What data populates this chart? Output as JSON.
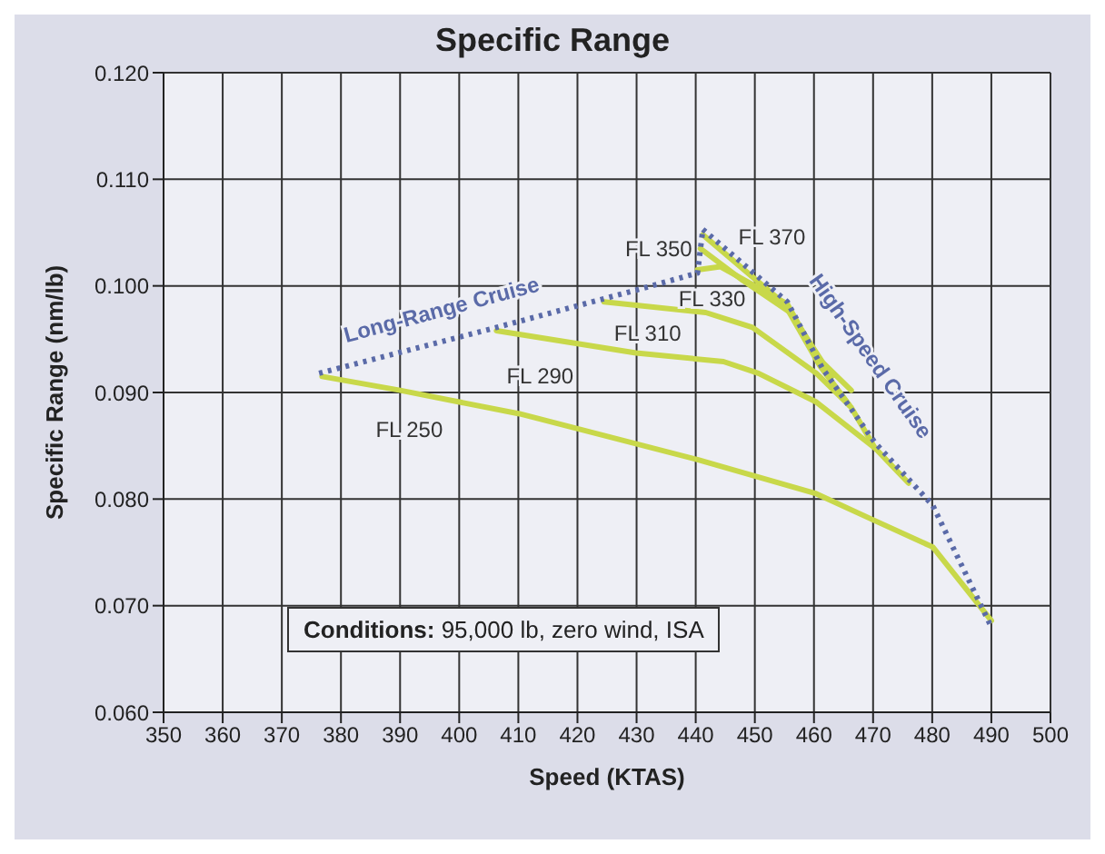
{
  "chart_data": {
    "type": "line",
    "title": "Specific Range",
    "xlabel": "Speed (KTAS)",
    "ylabel": "Specific Range (nm/lb)",
    "xlim": [
      350,
      500
    ],
    "xticks": [
      350,
      360,
      370,
      380,
      390,
      400,
      410,
      420,
      430,
      440,
      450,
      460,
      470,
      480,
      490,
      500
    ],
    "ylim": [
      0.06,
      0.12
    ],
    "yticks": [
      {
        "value": 0.06,
        "label": "0.060"
      },
      {
        "value": 0.07,
        "label": "0.070"
      },
      {
        "value": 0.08,
        "label": "0.080"
      },
      {
        "value": 0.09,
        "label": "0.090"
      },
      {
        "value": 0.1,
        "label": "0.100"
      },
      {
        "value": 0.11,
        "label": "0.110"
      },
      {
        "value": 0.12,
        "label": "0.120"
      }
    ],
    "grid": true,
    "marker": "none",
    "series": [
      {
        "name": "FL 250",
        "color": "#c8d84a",
        "line_style": "solid",
        "x": [
          376.8,
          390,
          410.2,
          440.3,
          460.4,
          469.8,
          480.1,
          490
        ],
        "values": [
          0.0915,
          0.0902,
          0.088,
          0.0837,
          0.0805,
          0.0781,
          0.0755,
          0.0686
        ]
      },
      {
        "name": "FL 290",
        "color": "#c8d84a",
        "line_style": "solid",
        "x": [
          406.3,
          429.9,
          444.7,
          450.6,
          460.4,
          470.3,
          476
        ],
        "values": [
          0.0958,
          0.0937,
          0.0929,
          0.0918,
          0.0891,
          0.0848,
          0.0815
        ]
      },
      {
        "name": "FL 310",
        "color": "#c8d84a",
        "line_style": "solid",
        "x": [
          424.5,
          441.7,
          449.6,
          460.4,
          466.3,
          470.3
        ],
        "values": [
          0.0985,
          0.0975,
          0.0961,
          0.0918,
          0.0886,
          0.0848
        ]
      },
      {
        "name": "FL 330",
        "color": "#c8d84a",
        "line_style": "solid",
        "x": [
          440.3,
          444.2,
          455.5,
          460.4,
          466.3
        ],
        "values": [
          0.1015,
          0.1018,
          0.0983,
          0.0934,
          0.0902
        ]
      },
      {
        "name": "FL 350",
        "color": "#c8d84a",
        "line_style": "solid",
        "x": [
          440.8,
          448,
          456,
          463
        ],
        "values": [
          0.1035,
          0.1005,
          0.0975,
          0.0915
        ]
      },
      {
        "name": "FL 370",
        "color": "#c8d84a",
        "line_style": "solid",
        "x": [
          441.2,
          455,
          461,
          466
        ],
        "values": [
          0.1048,
          0.0983,
          0.0925,
          0.0888
        ]
      },
      {
        "name": "Long-Range Cruise",
        "color": "#5a6aa8",
        "line_style": "dotted",
        "x": [
          376.3,
          406.3,
          429.9,
          440.3,
          441.2
        ],
        "values": [
          0.0918,
          0.0961,
          0.0996,
          0.1012,
          0.1053
        ]
      },
      {
        "name": "High-Speed Cruise",
        "color": "#5a6aa8",
        "line_style": "dotted",
        "x": [
          441.2,
          455.5,
          461.4,
          470.3,
          480.1,
          490
        ],
        "values": [
          0.1053,
          0.0985,
          0.0923,
          0.0853,
          0.0794,
          0.068
        ]
      }
    ],
    "annotations": [
      "Conditions: 95,000 lb, zero wind, ISA"
    ]
  }
}
